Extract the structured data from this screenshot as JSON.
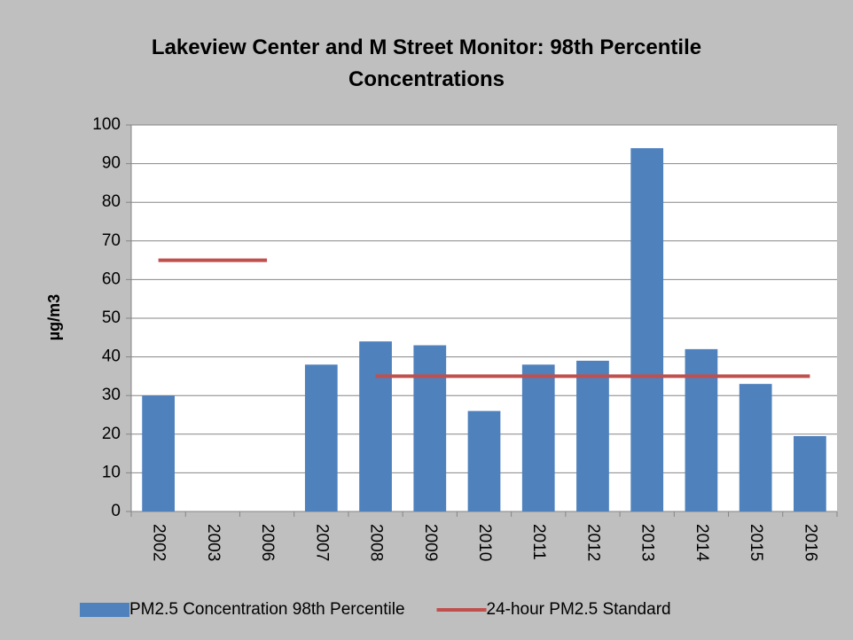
{
  "chart_data": {
    "type": "bar",
    "title": "Lakeview Center and M Street Monitor: 98th Percentile Concentrations",
    "y_label": "µg/m3",
    "categories": [
      "2002",
      "2003",
      "2006",
      "2007",
      "2008",
      "2009",
      "2010",
      "2011",
      "2012",
      "2013",
      "2014",
      "2015",
      "2016"
    ],
    "series": [
      {
        "name": "PM2.5 Concentration 98th Percentile",
        "type": "bar",
        "color": "#4f81bd",
        "values": [
          30,
          null,
          null,
          38,
          44,
          43,
          26,
          38,
          39,
          94,
          42,
          33,
          19.5
        ]
      },
      {
        "name": "24-hour PM2.5 Standard",
        "type": "line",
        "color": "#c0504d",
        "values": [
          65,
          65,
          65,
          null,
          35,
          35,
          35,
          35,
          35,
          35,
          35,
          35,
          35
        ]
      }
    ],
    "ylim": [
      0,
      100
    ],
    "yticks": [
      0,
      10,
      20,
      30,
      40,
      50,
      60,
      70,
      80,
      90,
      100
    ],
    "grid": true,
    "legend": "bottom"
  }
}
